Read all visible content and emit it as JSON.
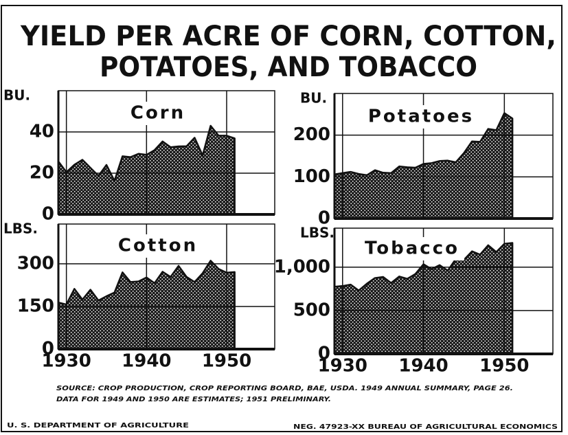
{
  "title_lines": [
    "YIELD PER ACRE OF CORN, COTTON,",
    "POTATOES, AND TOBACCO"
  ],
  "source_lines": [
    "SOURCE: CROP PRODUCTION, CROP REPORTING BOARD, BAE, USDA. 1949 ANNUAL SUMMARY, PAGE 26.",
    "DATA FOR 1949 AND 1950 ARE ESTIMATES; 1951 PRELIMINARY."
  ],
  "footer_left": "U. S. DEPARTMENT OF AGRICULTURE",
  "footer_right": "NEG. 47923-XX   BUREAU OF AGRICULTURAL ECONOMICS",
  "chart_data": [
    {
      "type": "area",
      "title": "Corn",
      "ylabel": "BU.",
      "color": "#1a1a1a",
      "grid": true,
      "x": [
        1929,
        1930,
        1931,
        1932,
        1933,
        1934,
        1935,
        1936,
        1937,
        1938,
        1939,
        1940,
        1941,
        1942,
        1943,
        1944,
        1945,
        1946,
        1947,
        1948,
        1949,
        1950,
        1951
      ],
      "values": [
        25.7,
        20.5,
        24.1,
        26.5,
        22.6,
        18.7,
        24.0,
        16.3,
        28.2,
        27.8,
        29.4,
        28.9,
        31.2,
        35.4,
        32.6,
        33.0,
        33.1,
        37.2,
        28.6,
        43.0,
        38.2,
        38.2,
        36.9
      ],
      "xlim": [
        1929,
        1956
      ],
      "xticks": [
        1930,
        1940,
        1950
      ],
      "ylim": [
        0,
        60
      ],
      "yticks": [
        0,
        20,
        40
      ]
    },
    {
      "type": "area",
      "title": "Potatoes",
      "ylabel": "BU.",
      "color": "#1a1a1a",
      "grid": true,
      "x": [
        1929,
        1930,
        1931,
        1932,
        1933,
        1934,
        1935,
        1936,
        1937,
        1938,
        1939,
        1940,
        1941,
        1942,
        1943,
        1944,
        1945,
        1946,
        1947,
        1948,
        1949,
        1950,
        1951
      ],
      "values": [
        106,
        109,
        112,
        107,
        104,
        116,
        110,
        109,
        125,
        123,
        122,
        131,
        133,
        138,
        139,
        135,
        157,
        185,
        184,
        215,
        212,
        253,
        240
      ],
      "xlim": [
        1929,
        1956
      ],
      "xticks": [
        1930,
        1940,
        1950
      ],
      "ylim": [
        0,
        300
      ],
      "yticks": [
        0,
        100,
        200
      ]
    },
    {
      "type": "area",
      "title": "Cotton",
      "ylabel": "LBS.",
      "color": "#1a1a1a",
      "grid": true,
      "x": [
        1929,
        1930,
        1931,
        1932,
        1933,
        1934,
        1935,
        1936,
        1937,
        1938,
        1939,
        1940,
        1941,
        1942,
        1943,
        1944,
        1945,
        1946,
        1947,
        1948,
        1949,
        1950,
        1951
      ],
      "values": [
        164,
        157,
        212,
        174,
        209,
        171,
        186,
        199,
        270,
        236,
        238,
        252,
        232,
        272,
        254,
        293,
        254,
        236,
        267,
        311,
        282,
        269,
        271
      ],
      "xlim": [
        1929,
        1956
      ],
      "xticks": [
        1930,
        1940,
        1950
      ],
      "ylim": [
        0,
        440
      ],
      "yticks": [
        0,
        150,
        300
      ]
    },
    {
      "type": "area",
      "title": "Tobacco",
      "ylabel": "LBS.",
      "color": "#1a1a1a",
      "grid": true,
      "x": [
        1929,
        1930,
        1931,
        1932,
        1933,
        1934,
        1935,
        1936,
        1937,
        1938,
        1939,
        1940,
        1941,
        1942,
        1943,
        1944,
        1945,
        1946,
        1947,
        1948,
        1949,
        1950,
        1951
      ],
      "values": [
        775,
        783,
        799,
        731,
        810,
        875,
        888,
        818,
        893,
        866,
        922,
        1034,
        978,
        1024,
        960,
        1095,
        1085,
        1183,
        1145,
        1253,
        1175,
        1270,
        1280
      ],
      "xlim": [
        1929,
        1956
      ],
      "xticks": [
        1930,
        1940,
        1950
      ],
      "ylim": [
        0,
        1450
      ],
      "yticks": [
        0,
        500,
        {
          "value": 1000,
          "label": "1,000"
        }
      ]
    }
  ]
}
